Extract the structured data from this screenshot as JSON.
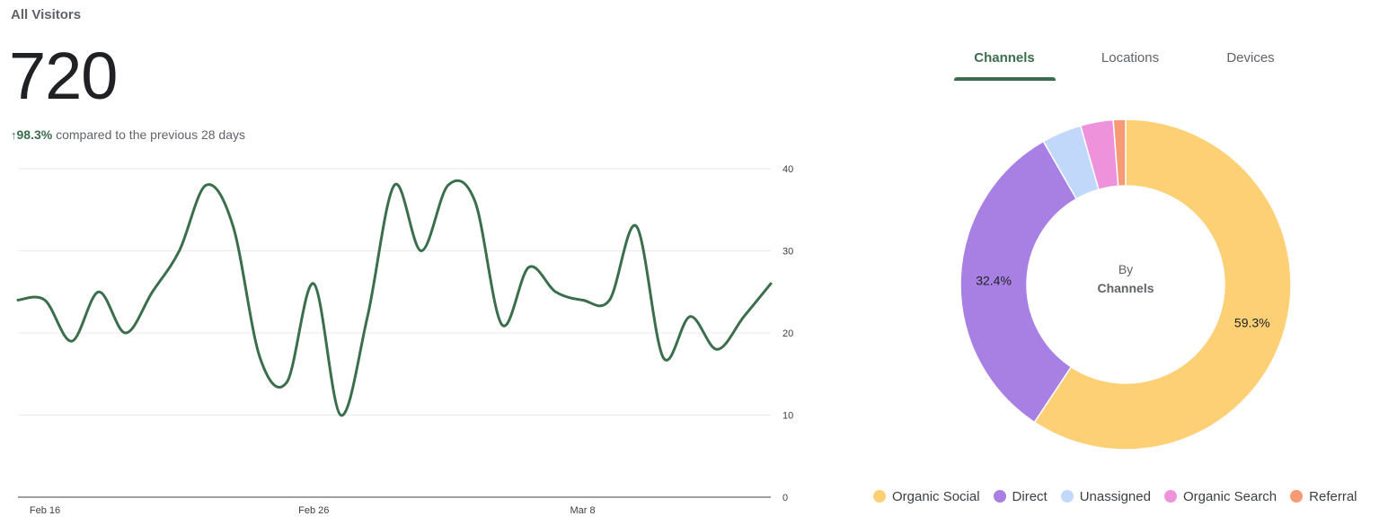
{
  "header": {
    "title": "All Visitors",
    "value": "720",
    "change_pct": "98.3%",
    "change_text": "compared to the previous 28 days",
    "change_direction_icon": "arrow-up-icon"
  },
  "tabs": [
    {
      "label": "Channels",
      "active": true
    },
    {
      "label": "Locations",
      "active": false
    },
    {
      "label": "Devices",
      "active": false
    }
  ],
  "colors": {
    "line": "#3b6e4c",
    "accent": "#3b6e4c",
    "grid": "#e8eaed"
  },
  "chart_data": [
    {
      "type": "line",
      "title": "",
      "xlabel": "",
      "ylabel": "",
      "x_tick_labels": [
        "Feb 16",
        "Feb 26",
        "Mar 8"
      ],
      "y_ticks": [
        0,
        10,
        20,
        30,
        40
      ],
      "ylim": [
        0,
        40
      ],
      "grid": true,
      "y_axis_side": "right",
      "series": [
        {
          "values": [
            24,
            24,
            19,
            25,
            20,
            25,
            30,
            38,
            33,
            17,
            14,
            26,
            10,
            22,
            38,
            30,
            38,
            36,
            21,
            28,
            25,
            24,
            24,
            33,
            17,
            22,
            18,
            22,
            26
          ]
        }
      ]
    },
    {
      "type": "pie",
      "donut": true,
      "center_label_line1": "By",
      "center_label_line2": "Channels",
      "legend_position": "bottom",
      "slices": [
        {
          "label": "Organic Social",
          "value": 59.3,
          "display": "59.3%",
          "color": "#fdd075"
        },
        {
          "label": "Direct",
          "value": 32.4,
          "display": "32.4%",
          "color": "#a880e3"
        },
        {
          "label": "Unassigned",
          "value": 3.9,
          "display": "",
          "color": "#c2d8fb"
        },
        {
          "label": "Organic Search",
          "value": 3.2,
          "display": "",
          "color": "#ef92dc"
        },
        {
          "label": "Referral",
          "value": 1.2,
          "display": "",
          "color": "#f79a76"
        }
      ]
    }
  ]
}
